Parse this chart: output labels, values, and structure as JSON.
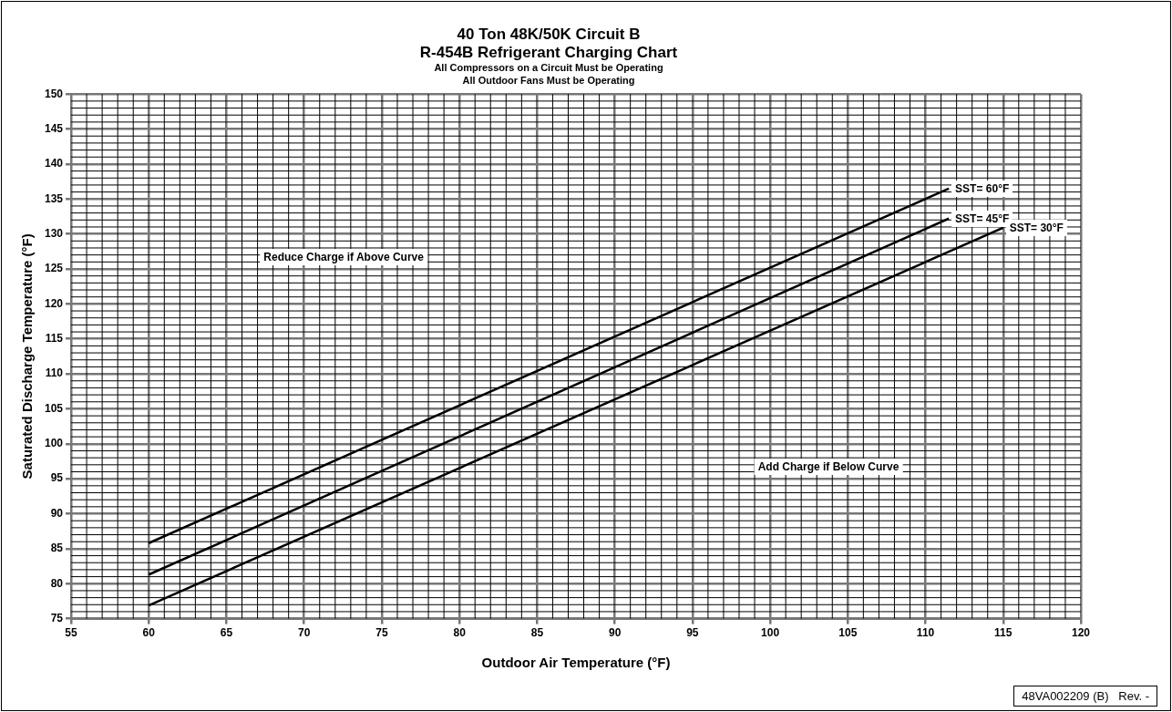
{
  "chart_data": {
    "type": "line",
    "title": "40 Ton 48K/50K Circuit B",
    "subtitle": "R-454B Refrigerant Charging Chart",
    "xlabel": "Outdoor Air Temperature (°F)",
    "ylabel": "Saturated Discharge Temperature (°F)",
    "annotations": [
      "All Compressors on a Circuit Must be Operating",
      "All Outdoor Fans Must be Operating",
      "Reduce Charge if Above Curve",
      "Add Charge if Below Curve",
      "48VA002209 (B)   Rev. -"
    ],
    "series": [
      {
        "name": "SST= 60°F",
        "color": "#000000",
        "x": [
          60,
          111.5
        ],
        "values": [
          85.8,
          136.5
        ]
      },
      {
        "name": "SST= 45°F",
        "color": "#000000",
        "x": [
          60,
          111.5
        ],
        "values": [
          81.3,
          132.2
        ]
      },
      {
        "name": "SST= 30°F",
        "color": "#000000",
        "x": [
          60,
          115
        ],
        "values": [
          76.9,
          130.9
        ]
      }
    ],
    "xlim": [
      55,
      120
    ],
    "xticks": [
      55,
      60,
      65,
      70,
      75,
      80,
      85,
      90,
      95,
      100,
      105,
      110,
      115,
      120
    ],
    "ylim": [
      75,
      150
    ],
    "yticks": [
      75,
      80,
      85,
      90,
      95,
      100,
      105,
      110,
      115,
      120,
      125,
      130,
      135,
      140,
      145,
      150
    ],
    "grid": true,
    "legend": false,
    "marker": "none",
    "line_style": "solid"
  }
}
